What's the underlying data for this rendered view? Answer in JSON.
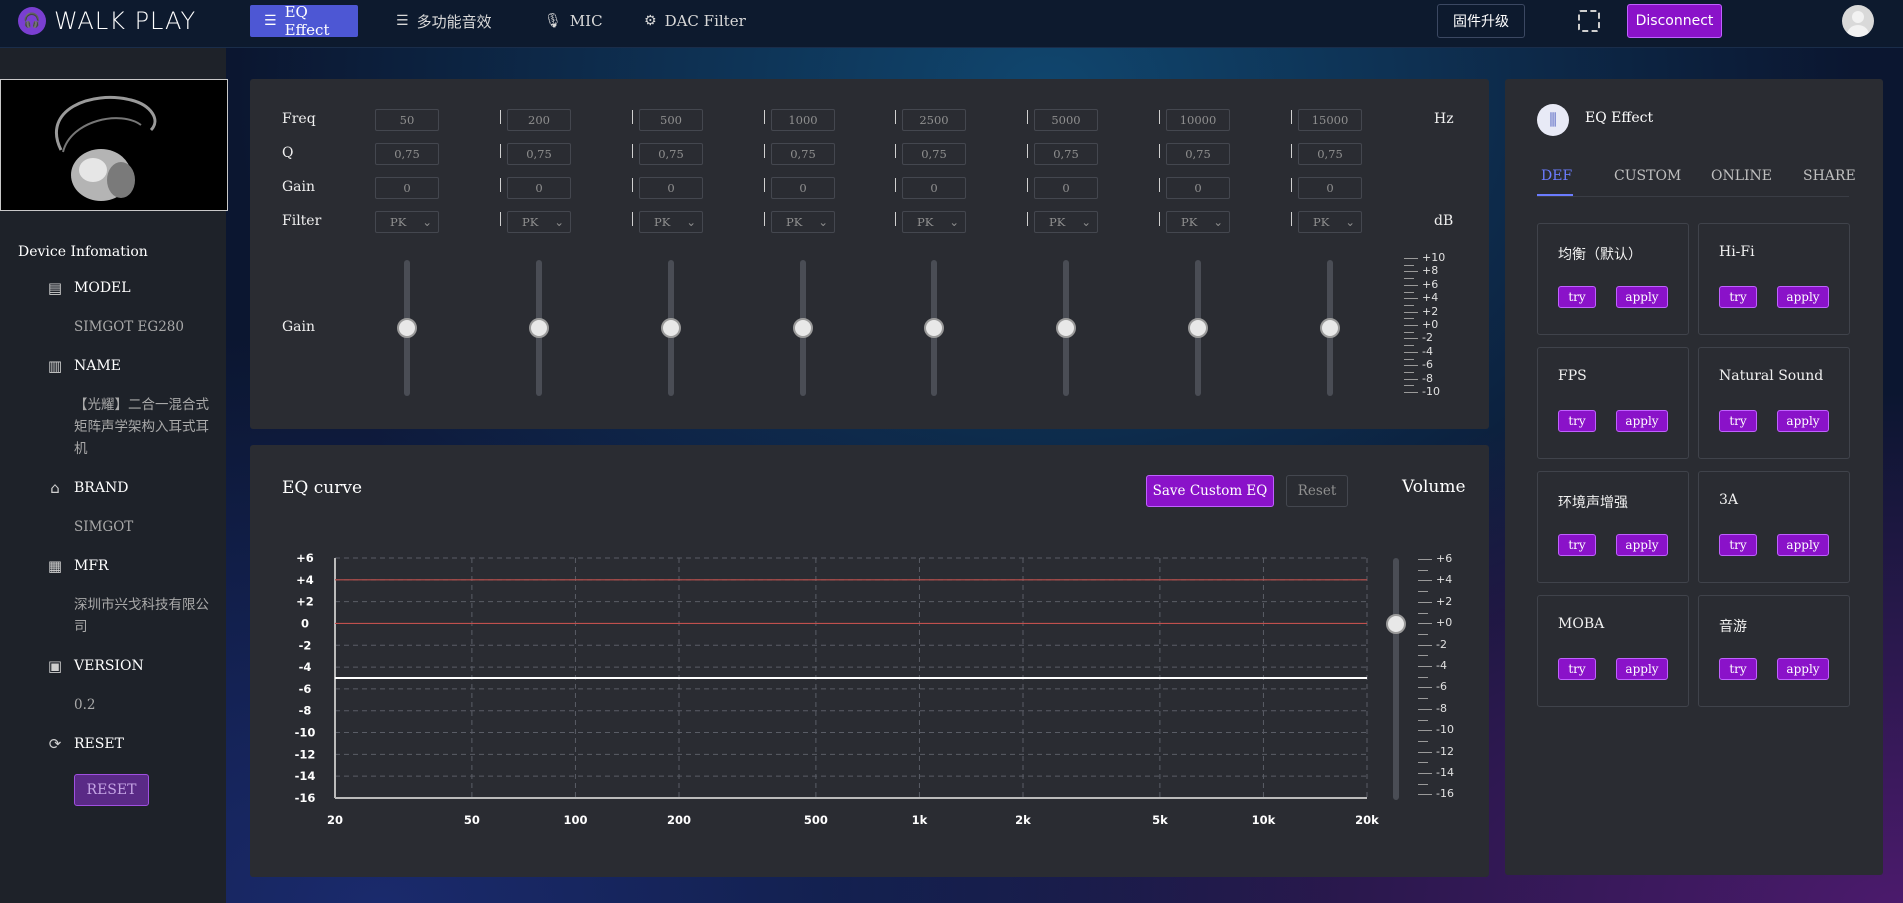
{
  "brand": {
    "name": "WALK PLAY",
    "mark": "WP"
  },
  "nav": {
    "tabs": [
      {
        "label": "EQ Effect",
        "icon": "sliders-icon",
        "active": true
      },
      {
        "label": "多功能音效",
        "icon": "sliders-icon"
      },
      {
        "label": "MIC",
        "icon": "mic-icon"
      },
      {
        "label": "DAC Filter",
        "icon": "gear-icon"
      }
    ],
    "firmware_label": "固件升级",
    "disconnect_label": "Disconnect",
    "scan_icon": "scan-icon"
  },
  "device": {
    "section_title": "Device Infomation",
    "model_label": "MODEL",
    "model_value": "SIMGOT EG280",
    "name_label": "NAME",
    "name_value": "【光耀】二合一混合式矩阵声学架构入耳式耳机",
    "brand_label": "BRAND",
    "brand_value": "SIMGOT",
    "mfr_label": "MFR",
    "mfr_value": "深圳市兴戈科技有限公司",
    "version_label": "VERSION",
    "version_value": "0.2",
    "reset_label": "RESET",
    "reset_button": "RESET"
  },
  "eq": {
    "row_labels": {
      "freq": "Freq",
      "q": "Q",
      "gain": "Gain",
      "filter": "Filter",
      "gain_slider": "Gain"
    },
    "units": {
      "freq": "Hz",
      "filter": "dB"
    },
    "bands": [
      {
        "freq": "50",
        "q": "0,75",
        "gain": "0",
        "filter": "PK"
      },
      {
        "freq": "200",
        "q": "0,75",
        "gain": "0",
        "filter": "PK"
      },
      {
        "freq": "500",
        "q": "0,75",
        "gain": "0",
        "filter": "PK"
      },
      {
        "freq": "1000",
        "q": "0,75",
        "gain": "0",
        "filter": "PK"
      },
      {
        "freq": "2500",
        "q": "0,75",
        "gain": "0",
        "filter": "PK"
      },
      {
        "freq": "5000",
        "q": "0,75",
        "gain": "0",
        "filter": "PK"
      },
      {
        "freq": "10000",
        "q": "0,75",
        "gain": "0",
        "filter": "PK"
      },
      {
        "freq": "15000",
        "q": "0,75",
        "gain": "0",
        "filter": "PK"
      }
    ],
    "gain_scale": [
      "+10",
      "+8",
      "+6",
      "+4",
      "+2",
      "+0",
      "-2",
      "-4",
      "-6",
      "-8",
      "-10"
    ],
    "gain_range": [
      -10,
      10
    ]
  },
  "curve": {
    "title": "EQ curve",
    "save_label": "Save Custom EQ",
    "reset_label": "Reset",
    "volume_label": "Volume",
    "volume_scale": [
      "+6",
      "+4",
      "+2",
      "+0",
      "-2",
      "-4",
      "-6",
      "-8",
      "-10",
      "-12",
      "-14",
      "-16"
    ],
    "volume_value": 0
  },
  "chart_data": {
    "type": "line",
    "title": "EQ curve",
    "x": [
      "20",
      "50",
      "100",
      "200",
      "500",
      "1k",
      "2k",
      "5k",
      "10k",
      "20k"
    ],
    "x_values": [
      20,
      50,
      100,
      200,
      500,
      1000,
      2000,
      5000,
      10000,
      20000
    ],
    "x_scale": "log",
    "xlim": [
      20,
      20000
    ],
    "y_ticks": [
      "+6",
      "+4",
      "+2",
      "0",
      "-2",
      "-4",
      "-6",
      "-8",
      "-10",
      "-12",
      "-14",
      "-16"
    ],
    "ylim": [
      -16,
      6
    ],
    "grid": true,
    "series": [
      {
        "color": "#c0504d",
        "values": [
          4,
          4,
          4,
          4,
          4,
          4,
          4,
          4,
          4,
          4
        ]
      },
      {
        "color": "#c0504d",
        "values": [
          0,
          0,
          0,
          0,
          0,
          0,
          0,
          0,
          0,
          0
        ]
      },
      {
        "color": "#ffffff",
        "values": [
          -5,
          -5,
          -5,
          -5,
          -5,
          -5,
          -5,
          -5,
          -5,
          -5
        ]
      }
    ]
  },
  "presets": {
    "header": "EQ Effect",
    "tabs": [
      "DEF",
      "CUSTOM",
      "ONLINE",
      "SHARE"
    ],
    "active_tab": "DEF",
    "try_label": "try",
    "apply_label": "apply",
    "items": [
      "均衡（默认）",
      "Hi-Fi",
      "FPS",
      "Natural Sound",
      "环境声增强",
      "3A",
      "MOBA",
      "音游"
    ]
  },
  "colors": {
    "accent": "#8a12c9",
    "nav_active": "#4d57d4",
    "tab_active": "#6b7cff"
  }
}
